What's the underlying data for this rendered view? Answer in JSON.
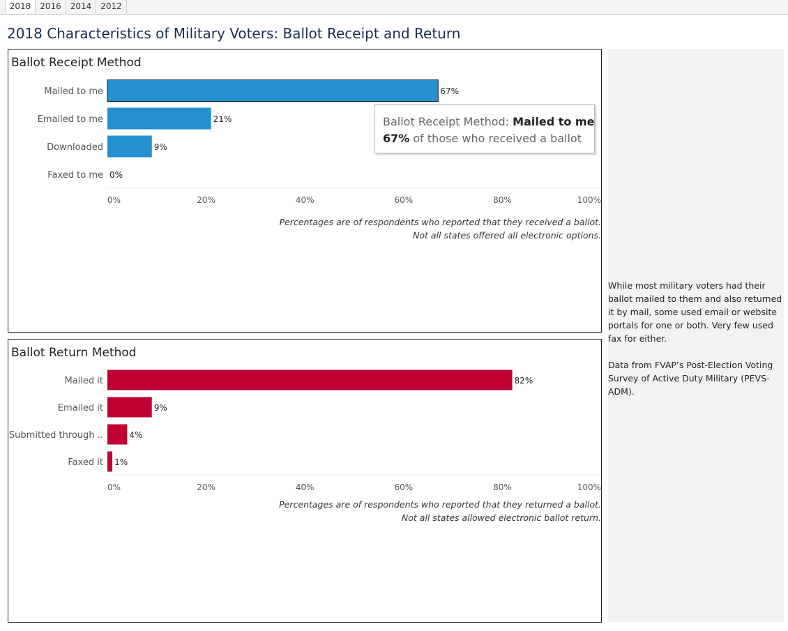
{
  "tabs": [
    "2018",
    "2016",
    "2014",
    "2012"
  ],
  "active_tab": "2018",
  "page_title": "2018 Characteristics of Military Voters: Ballot Receipt and Return",
  "receipt": {
    "title": "Ballot Receipt Method",
    "note_line1": "Percentages are of respondents who reported that they received a ballot.",
    "note_line2": "Not all states offered all electronic options."
  },
  "return": {
    "title": "Ballot Return Method",
    "note_line1": "Percentages are of respondents who reported that they returned a ballot.",
    "note_line2": "Not all states allowed electronic ballot return."
  },
  "tooltip": {
    "label": "Ballot Receipt Method:",
    "category": "Mailed to me",
    "value": "67%",
    "suffix": "of those who received a ballot"
  },
  "sidebar": {
    "paragraph1": "While most military voters had their ballot mailed to them and also returned it by mail, some used email or website portals for one or both. Very few used fax for either.",
    "paragraph2": "Data from FVAP’s Post-Election Voting Survey of Active Duty Military (PEVS-ADM)."
  },
  "colors": {
    "receipt_bar": "#2490d0",
    "return_bar": "#c00032"
  },
  "chart_data": [
    {
      "type": "bar",
      "orientation": "horizontal",
      "title": "Ballot Receipt Method",
      "categories": [
        "Mailed to me",
        "Emailed to me",
        "Downloaded",
        "Faxed to me"
      ],
      "values": [
        67,
        21,
        9,
        0
      ],
      "value_labels": [
        "67%",
        "21%",
        "9%",
        "0%"
      ],
      "xlim": [
        0,
        100
      ],
      "x_ticks": [
        "0%",
        "20%",
        "40%",
        "60%",
        "80%",
        "100%"
      ],
      "highlighted": "Mailed to me",
      "grid": false
    },
    {
      "type": "bar",
      "orientation": "horizontal",
      "title": "Ballot Return Method",
      "categories": [
        "Mailed it",
        "Emailed it",
        "Submitted through ..",
        "Faxed it"
      ],
      "values": [
        82,
        9,
        4,
        1
      ],
      "value_labels": [
        "82%",
        "9%",
        "4%",
        "1%"
      ],
      "xlim": [
        0,
        100
      ],
      "x_ticks": [
        "0%",
        "20%",
        "40%",
        "60%",
        "80%",
        "100%"
      ],
      "grid": false
    }
  ]
}
